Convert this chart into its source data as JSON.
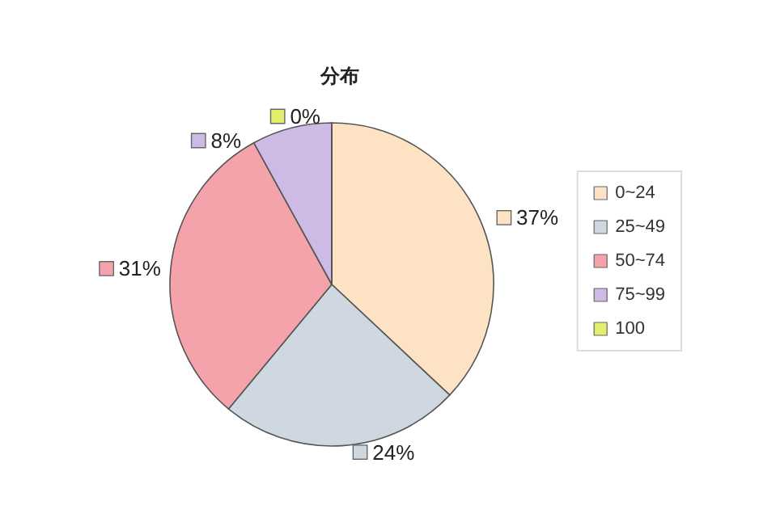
{
  "chart_data": {
    "type": "pie",
    "title": "分布",
    "categories": [
      "0~24",
      "25~49",
      "50~74",
      "75~99",
      "100"
    ],
    "values": [
      37,
      24,
      31,
      8,
      0
    ],
    "value_labels": [
      "37%",
      "24%",
      "31%",
      "8%",
      "0%"
    ],
    "colors": [
      "#fde3c4",
      "#cfd8e0",
      "#f4a3ab",
      "#cdbbe6",
      "#e3ee6a"
    ],
    "legend": "right"
  }
}
